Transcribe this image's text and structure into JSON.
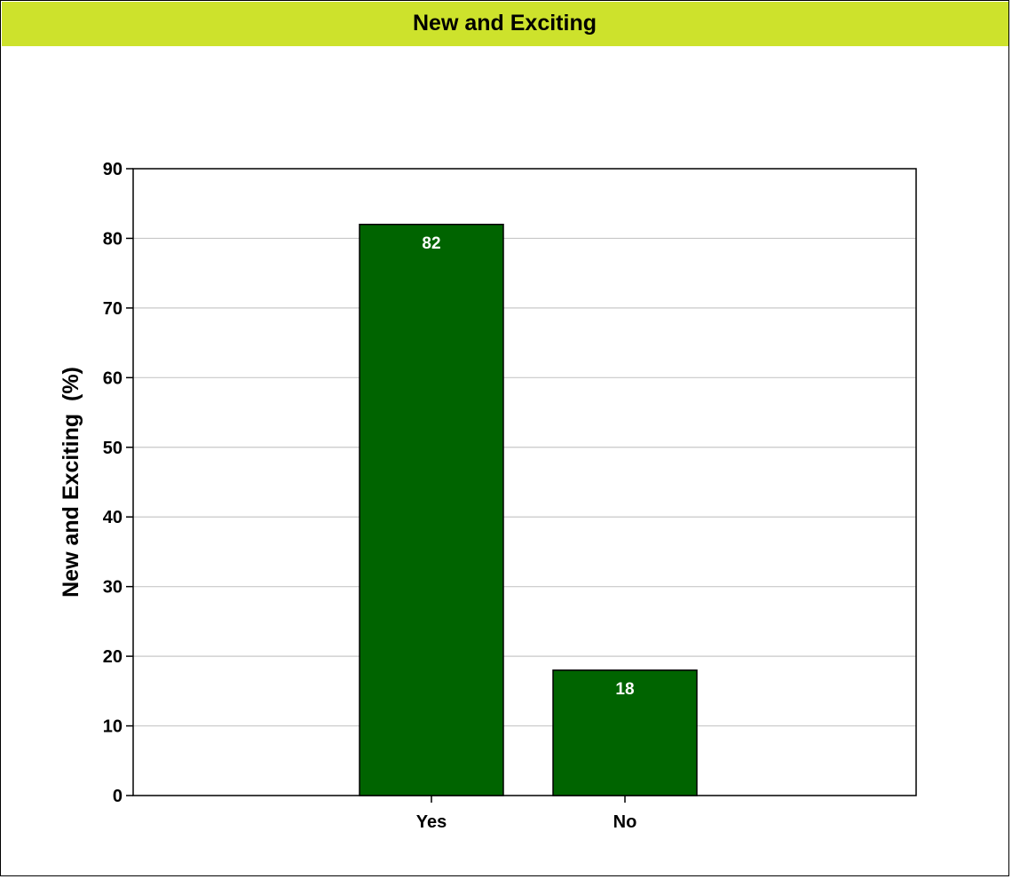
{
  "colors": {
    "title_bar": "#cde22c",
    "bar_fill": "#006400",
    "bar_label": "#ffffff",
    "gridline": "#c8c8c8",
    "axis": "#000000"
  },
  "chart_data": {
    "type": "bar",
    "title": "New and Exciting",
    "xlabel": "",
    "ylabel": "New and Exciting  (%)",
    "categories": [
      "Yes",
      "No"
    ],
    "values": [
      82,
      18
    ],
    "value_labels": [
      "82",
      "18"
    ],
    "ylim": [
      0,
      90
    ],
    "yticks": [
      0,
      10,
      20,
      30,
      40,
      50,
      60,
      70,
      80,
      90
    ],
    "ytick_labels": [
      "0",
      "10",
      "20",
      "30",
      "40",
      "50",
      "60",
      "70",
      "80",
      "90"
    ],
    "grid": true,
    "legend": "none"
  }
}
